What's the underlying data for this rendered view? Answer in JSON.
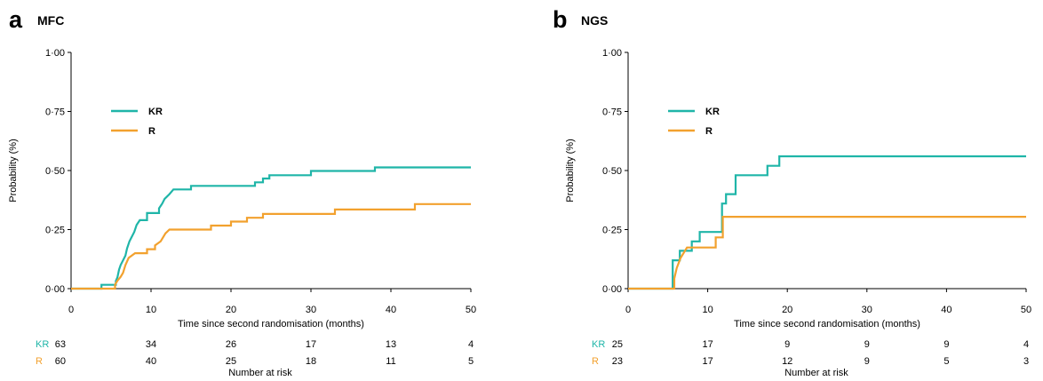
{
  "chart_data": [
    {
      "type": "line",
      "step": true,
      "panel_letter": "a",
      "title": "MFC",
      "xlabel": "Time since second randomisation (months)",
      "ylabel": "Probability (%)",
      "xlim": [
        0,
        50
      ],
      "ylim": [
        0,
        1
      ],
      "x_ticks": [
        "0",
        "10",
        "20",
        "30",
        "40",
        "50"
      ],
      "y_ticks": [
        "0·00",
        "0·25",
        "0·50",
        "0·75",
        "1·00"
      ],
      "legend_position": "upper-left",
      "series": [
        {
          "name": "KR",
          "color": "#1fb5a8",
          "points": [
            [
              0,
              0
            ],
            [
              3.8,
              0
            ],
            [
              3.8,
              0.016
            ],
            [
              5.6,
              0.016
            ],
            [
              5.6,
              0.032
            ],
            [
              5.8,
              0.048
            ],
            [
              6.0,
              0.08
            ],
            [
              6.2,
              0.1
            ],
            [
              6.5,
              0.12
            ],
            [
              6.8,
              0.14
            ],
            [
              7.0,
              0.17
            ],
            [
              7.3,
              0.2
            ],
            [
              7.6,
              0.22
            ],
            [
              7.9,
              0.24
            ],
            [
              8.2,
              0.27
            ],
            [
              8.6,
              0.29
            ],
            [
              9.5,
              0.29
            ],
            [
              9.5,
              0.32
            ],
            [
              11.0,
              0.32
            ],
            [
              11.0,
              0.34
            ],
            [
              11.4,
              0.36
            ],
            [
              11.7,
              0.38
            ],
            [
              12.0,
              0.39
            ],
            [
              12.3,
              0.4
            ],
            [
              12.8,
              0.42
            ],
            [
              15.0,
              0.42
            ],
            [
              15.0,
              0.435
            ],
            [
              23.0,
              0.435
            ],
            [
              23.0,
              0.45
            ],
            [
              24.0,
              0.45
            ],
            [
              24.0,
              0.466
            ],
            [
              24.8,
              0.466
            ],
            [
              24.8,
              0.48
            ],
            [
              30.0,
              0.48
            ],
            [
              30.0,
              0.498
            ],
            [
              38.0,
              0.498
            ],
            [
              38.0,
              0.513
            ],
            [
              50,
              0.513
            ]
          ]
        },
        {
          "name": "R",
          "color": "#f2a12e",
          "points": [
            [
              0,
              0
            ],
            [
              5.5,
              0
            ],
            [
              5.5,
              0.017
            ],
            [
              5.8,
              0.034
            ],
            [
              6.2,
              0.05
            ],
            [
              6.5,
              0.067
            ],
            [
              6.8,
              0.1
            ],
            [
              7.2,
              0.13
            ],
            [
              8.0,
              0.15
            ],
            [
              9.5,
              0.15
            ],
            [
              9.5,
              0.167
            ],
            [
              10.5,
              0.167
            ],
            [
              10.5,
              0.183
            ],
            [
              11.2,
              0.2
            ],
            [
              11.5,
              0.217
            ],
            [
              11.8,
              0.234
            ],
            [
              12.3,
              0.25
            ],
            [
              17.5,
              0.25
            ],
            [
              17.5,
              0.267
            ],
            [
              20.0,
              0.267
            ],
            [
              20.0,
              0.284
            ],
            [
              22.0,
              0.284
            ],
            [
              22.0,
              0.3
            ],
            [
              24.0,
              0.3
            ],
            [
              24.0,
              0.316
            ],
            [
              33.0,
              0.316
            ],
            [
              33.0,
              0.335
            ],
            [
              43.0,
              0.335
            ],
            [
              43.0,
              0.358
            ],
            [
              50,
              0.358
            ]
          ]
        }
      ],
      "risk_table": {
        "title": "Number at risk",
        "rows": [
          {
            "label": "KR",
            "values": [
              "63",
              "34",
              "26",
              "17",
              "13",
              "4"
            ]
          },
          {
            "label": "R",
            "values": [
              "60",
              "40",
              "25",
              "18",
              "11",
              "5"
            ]
          }
        ]
      }
    },
    {
      "type": "line",
      "step": true,
      "panel_letter": "b",
      "title": "NGS",
      "xlabel": "Time since second randomisation (months)",
      "ylabel": "Probability (%)",
      "xlim": [
        0,
        50
      ],
      "ylim": [
        0,
        1
      ],
      "x_ticks": [
        "0",
        "10",
        "20",
        "30",
        "40",
        "50"
      ],
      "y_ticks": [
        "0·00",
        "0·25",
        "0·50",
        "0·75",
        "1·00"
      ],
      "legend_position": "upper-left",
      "series": [
        {
          "name": "KR",
          "color": "#1fb5a8",
          "points": [
            [
              0,
              0
            ],
            [
              5.6,
              0
            ],
            [
              5.6,
              0.12
            ],
            [
              6.5,
              0.12
            ],
            [
              6.5,
              0.16
            ],
            [
              8.0,
              0.16
            ],
            [
              8.0,
              0.2
            ],
            [
              9.0,
              0.2
            ],
            [
              9.0,
              0.24
            ],
            [
              11.8,
              0.24
            ],
            [
              11.8,
              0.36
            ],
            [
              12.3,
              0.36
            ],
            [
              12.3,
              0.4
            ],
            [
              13.5,
              0.4
            ],
            [
              13.5,
              0.48
            ],
            [
              17.5,
              0.48
            ],
            [
              17.5,
              0.52
            ],
            [
              19.0,
              0.52
            ],
            [
              19.0,
              0.56
            ],
            [
              50,
              0.56
            ]
          ]
        },
        {
          "name": "R",
          "color": "#f2a12e",
          "points": [
            [
              0,
              0
            ],
            [
              5.8,
              0
            ],
            [
              5.8,
              0.043
            ],
            [
              6.1,
              0.087
            ],
            [
              6.6,
              0.13
            ],
            [
              7.4,
              0.174
            ],
            [
              11.0,
              0.174
            ],
            [
              11.0,
              0.217
            ],
            [
              11.9,
              0.217
            ],
            [
              11.9,
              0.304
            ],
            [
              50,
              0.304
            ]
          ]
        }
      ],
      "risk_table": {
        "title": "Number at risk",
        "rows": [
          {
            "label": "KR",
            "values": [
              "25",
              "17",
              "9",
              "9",
              "9",
              "4"
            ]
          },
          {
            "label": "R",
            "values": [
              "23",
              "17",
              "12",
              "9",
              "5",
              "3"
            ]
          }
        ]
      }
    }
  ]
}
